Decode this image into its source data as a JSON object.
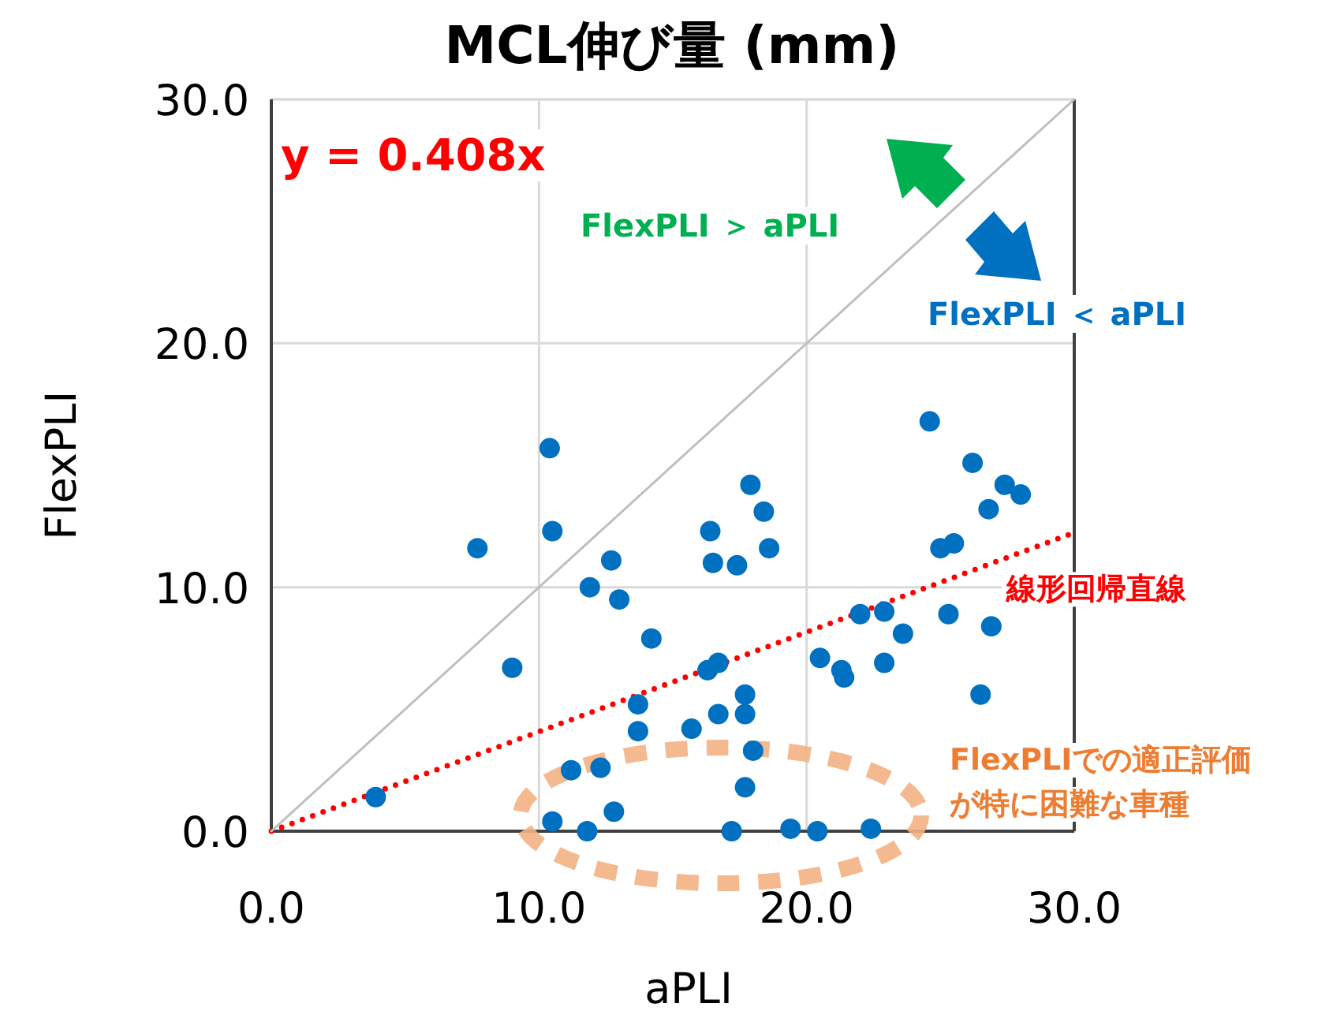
{
  "chart_data": {
    "type": "scatter",
    "title": "MCL伸び量 (mm)",
    "xlabel": "aPLI",
    "ylabel": "FlexPLI",
    "xlim": [
      0,
      30
    ],
    "ylim": [
      0,
      30
    ],
    "xticks": [
      {
        "value": 0,
        "label": "0.0"
      },
      {
        "value": 10,
        "label": "10.0"
      },
      {
        "value": 20,
        "label": "20.0"
      },
      {
        "value": 30,
        "label": "30.0"
      }
    ],
    "yticks": [
      {
        "value": 0,
        "label": "0.0"
      },
      {
        "value": 10,
        "label": "10.0"
      },
      {
        "value": 20,
        "label": "20.0"
      },
      {
        "value": 30,
        "label": "30.0"
      }
    ],
    "grid": true,
    "marker": "circle",
    "series": [
      {
        "type": "scatter",
        "color": "#0070c0",
        "x": [
          3.9,
          7.7,
          9.0,
          10.4,
          10.5,
          10.5,
          11.8,
          11.2,
          11.9,
          12.3,
          12.7,
          13.0,
          12.8,
          13.7,
          13.7,
          14.2,
          15.7,
          16.3,
          16.7,
          16.4,
          16.5,
          17.4,
          16.7,
          17.7,
          17.7,
          17.2,
          17.9,
          18.4,
          18.6,
          18.0,
          17.7,
          19.4,
          20.4,
          22.4,
          20.5,
          21.3,
          21.4,
          22.0,
          22.9,
          22.9,
          23.6,
          24.6,
          25.0,
          25.5,
          25.3,
          26.2,
          26.8,
          27.4,
          28.0,
          26.9,
          26.5
        ],
        "values": [
          1.4,
          11.6,
          6.7,
          15.7,
          12.3,
          0.4,
          0.0,
          2.5,
          10.0,
          2.6,
          11.1,
          9.5,
          0.8,
          5.2,
          4.1,
          7.9,
          4.2,
          6.6,
          6.9,
          12.3,
          11.0,
          10.9,
          4.8,
          5.6,
          4.8,
          0.0,
          14.2,
          13.1,
          11.6,
          3.3,
          1.8,
          0.1,
          0.0,
          0.1,
          7.1,
          6.6,
          6.3,
          8.9,
          9.0,
          6.9,
          8.1,
          16.8,
          11.6,
          11.8,
          8.9,
          15.1,
          13.2,
          14.2,
          13.8,
          8.4,
          5.6
        ]
      },
      {
        "type": "line",
        "color": "#ff0000",
        "line_style": "dotted",
        "marker": "none",
        "x": [
          0,
          30
        ],
        "values": [
          0,
          12.24
        ]
      },
      {
        "type": "line",
        "color": "#bfbfbf",
        "line_style": "solid",
        "marker": "none",
        "x": [
          0,
          30
        ],
        "values": [
          0,
          30
        ]
      }
    ],
    "annotations": [
      "y = 0.408x",
      "FlexPLI ＞ aPLI",
      "FlexPLI ＜ aPLI",
      {
        "text": "線形回帰直線",
        "x": 30,
        "y": 12.24
      },
      "FlexPLIでの適正評価",
      "が特に困難な車種"
    ]
  }
}
